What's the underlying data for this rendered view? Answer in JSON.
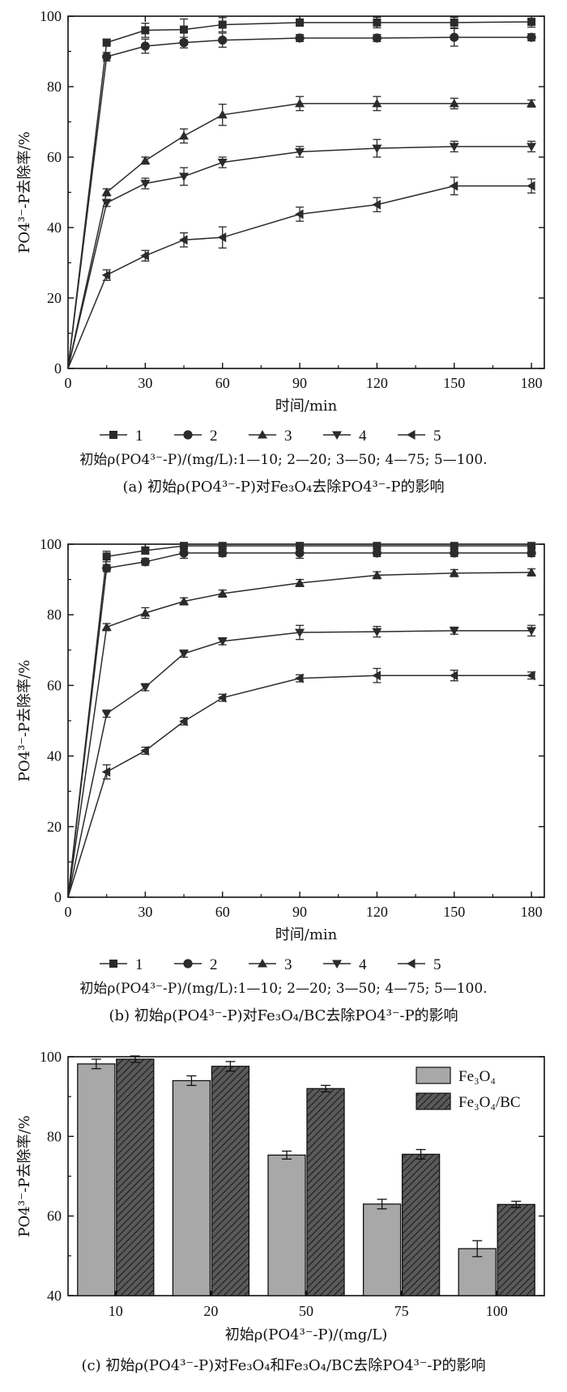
{
  "chart_data": [
    {
      "type": "line",
      "panel": "a",
      "xlabel": "时间/min",
      "ylabel": "PO4³⁻-P去除率/%",
      "xlim": [
        0,
        185
      ],
      "ylim": [
        0,
        100
      ],
      "x_ticks": [
        "0",
        "30",
        "60",
        "90",
        "120",
        "150",
        "180"
      ],
      "y_ticks": [
        "0",
        "20",
        "40",
        "60",
        "80",
        "100"
      ],
      "x": [
        0,
        15,
        30,
        45,
        60,
        90,
        120,
        150,
        180
      ],
      "series": [
        {
          "name": "1",
          "marker": "square",
          "values": [
            0,
            92.5,
            96,
            96.2,
            97.6,
            98.2,
            98.2,
            98.2,
            98.4
          ],
          "errors": [
            0,
            1.0,
            2.0,
            3.0,
            2.0,
            1.0,
            1.5,
            1.5,
            1.5
          ]
        },
        {
          "name": "2",
          "marker": "circle",
          "values": [
            0,
            88.5,
            91.5,
            92.5,
            93.2,
            93.8,
            93.8,
            94,
            94
          ],
          "errors": [
            0,
            1.2,
            2.0,
            1.5,
            2.0,
            1.0,
            1.0,
            2.5,
            1.0
          ]
        },
        {
          "name": "3",
          "marker": "triangle-up",
          "values": [
            0,
            50,
            59,
            66,
            72,
            75.2,
            75.2,
            75.2,
            75.2
          ],
          "errors": [
            0,
            1.0,
            1.0,
            2.0,
            3.0,
            2.0,
            2.0,
            1.5,
            1.0
          ]
        },
        {
          "name": "4",
          "marker": "triangle-down",
          "values": [
            0,
            47,
            52.5,
            54.5,
            58.5,
            61.5,
            62.5,
            63,
            63
          ],
          "errors": [
            0,
            1.0,
            1.5,
            2.5,
            1.5,
            1.5,
            2.5,
            1.5,
            1.5
          ]
        },
        {
          "name": "5",
          "marker": "triangle-left",
          "values": [
            0,
            26.5,
            32,
            36.5,
            37.2,
            43.8,
            46.5,
            51.8,
            51.8
          ],
          "errors": [
            0,
            1.5,
            1.5,
            2.0,
            3.0,
            2.0,
            2.0,
            2.5,
            2.0
          ]
        }
      ]
    },
    {
      "type": "line",
      "panel": "b",
      "xlabel": "时间/min",
      "ylabel": "PO4³⁻-P去除率/%",
      "xlim": [
        0,
        185
      ],
      "ylim": [
        0,
        100
      ],
      "x_ticks": [
        "0",
        "30",
        "60",
        "90",
        "120",
        "150",
        "180"
      ],
      "y_ticks": [
        "0",
        "20",
        "40",
        "60",
        "80",
        "100"
      ],
      "x": [
        0,
        15,
        30,
        45,
        60,
        90,
        120,
        150,
        180
      ],
      "series": [
        {
          "name": "1",
          "marker": "square",
          "values": [
            0,
            96.5,
            98.2,
            99.5,
            99.5,
            99.5,
            99.5,
            99.5,
            99.5
          ],
          "errors": [
            0,
            1.5,
            1.0,
            0.5,
            0.5,
            0.5,
            0.5,
            0.5,
            0.5
          ]
        },
        {
          "name": "2",
          "marker": "circle",
          "values": [
            0,
            93.2,
            95,
            97.5,
            97.5,
            97.5,
            97.5,
            97.5,
            97.5
          ],
          "errors": [
            0,
            1.0,
            1.0,
            1.5,
            1.0,
            1.5,
            1.0,
            1.0,
            1.0
          ]
        },
        {
          "name": "3",
          "marker": "triangle-up",
          "values": [
            0,
            76.5,
            80.5,
            83.8,
            86,
            89,
            91.2,
            91.8,
            92
          ],
          "errors": [
            0,
            1.0,
            1.5,
            1.0,
            1.0,
            1.0,
            1.0,
            1.0,
            1.0
          ]
        },
        {
          "name": "4",
          "marker": "triangle-down",
          "values": [
            0,
            52,
            59.5,
            69,
            72.5,
            75,
            75.2,
            75.5,
            75.5
          ],
          "errors": [
            0,
            1.0,
            1.0,
            1.0,
            1.0,
            2.0,
            1.5,
            1.0,
            1.5
          ]
        },
        {
          "name": "5",
          "marker": "triangle-left",
          "values": [
            0,
            35.5,
            41.5,
            49.8,
            56.5,
            62,
            62.8,
            62.8,
            62.8
          ],
          "errors": [
            0,
            2.0,
            1.0,
            1.0,
            1.0,
            1.0,
            2.0,
            1.5,
            1.0
          ]
        }
      ]
    },
    {
      "type": "bar",
      "panel": "c",
      "xlabel": "初始ρ(PO4³⁻-P)/(mg/L)",
      "ylabel": "PO4³⁻-P去除率/%",
      "ylim": [
        40,
        100
      ],
      "y_ticks": [
        "40",
        "60",
        "80",
        "100"
      ],
      "categories": [
        "10",
        "20",
        "50",
        "75",
        "100"
      ],
      "series": [
        {
          "name": "Fe₃O₄",
          "fill": "#a8a8a8",
          "values": [
            98.2,
            94,
            75.3,
            63,
            51.8
          ],
          "errors": [
            1.2,
            1.2,
            1.0,
            1.2,
            2.0
          ]
        },
        {
          "name": "Fe₃O₄/BC",
          "fill": "hatch",
          "values": [
            99.4,
            97.6,
            92,
            75.5,
            62.9
          ],
          "errors": [
            0.8,
            1.2,
            0.8,
            1.2,
            0.8
          ]
        }
      ]
    }
  ],
  "legend_numbers": [
    "1",
    "2",
    "3",
    "4",
    "5"
  ],
  "legend_note": "初始ρ(PO4³⁻-P)/(mg/L):1—10; 2—20; 3—50; 4—75; 5—100.",
  "captions": {
    "a": "(a) 初始ρ(PO4³⁻-P)对Fe₃O₄去除PO4³⁻-P的影响",
    "b": "(b) 初始ρ(PO4³⁻-P)对Fe₃O₄/BC去除PO4³⁻-P的影响",
    "c": "(c) 初始ρ(PO4³⁻-P)对Fe₃O₄和Fe₃O₄/BC去除PO4³⁻-P的影响"
  },
  "colors": {
    "line": "#2b2b2b",
    "bar_fe3o4": "#a8a8a8",
    "bar_hatch_bg": "#5a5a5a",
    "bar_hatch_line": "#222222"
  }
}
